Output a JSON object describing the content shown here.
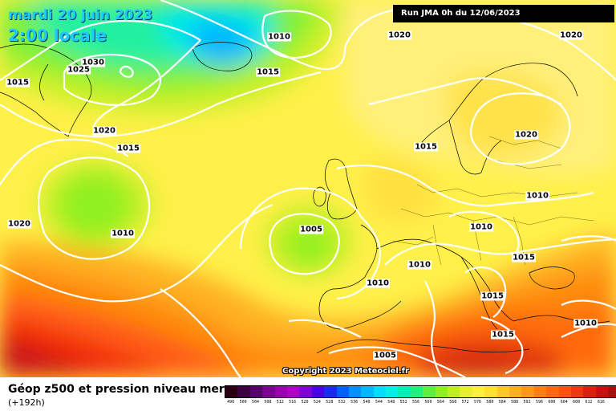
{
  "header": {
    "date_line1": "mardi 20 juin 2023",
    "date_line2": "2:00 locale",
    "run_info": "Run JMA 0h du 12/06/2023"
  },
  "copyright": "Copyright 2023 Meteociel.fr",
  "footer": {
    "title": "Géop z500 et pression niveau mer",
    "subtitle": "(+192h)"
  },
  "isobar_labels": [
    {
      "text": "1010",
      "id": "iso-1010-iceland"
    },
    {
      "text": "1030",
      "id": "iso-1030-greenland"
    },
    {
      "text": "1025",
      "id": "iso-1025-greenland"
    },
    {
      "text": "1015",
      "id": "iso-1015-west"
    },
    {
      "text": "1015",
      "id": "iso-1015-iceland"
    },
    {
      "text": "1020",
      "id": "iso-1020-greenland-south"
    },
    {
      "text": "1015",
      "id": "iso-1015-atlantic-north"
    },
    {
      "text": "1020",
      "id": "iso-1020-north"
    },
    {
      "text": "1020",
      "id": "iso-1020-northeast"
    },
    {
      "text": "1015",
      "id": "iso-1015-norway"
    },
    {
      "text": "1020",
      "id": "iso-1020-russia"
    },
    {
      "text": "1010",
      "id": "iso-1010-atlantic-low"
    },
    {
      "text": "1020",
      "id": "iso-1020-west-edge"
    },
    {
      "text": "1005",
      "id": "iso-1005-biscay-low"
    },
    {
      "text": "1010",
      "id": "iso-1010-ukraine"
    },
    {
      "text": "1010",
      "id": "iso-1010-central-europe"
    },
    {
      "text": "1010",
      "id": "iso-1010-france"
    },
    {
      "text": "1010",
      "id": "iso-1010-iberia"
    },
    {
      "text": "1015",
      "id": "iso-1015-balkans"
    },
    {
      "text": "1015",
      "id": "iso-1015-italy"
    },
    {
      "text": "1015",
      "id": "iso-1015-greece"
    },
    {
      "text": "1010",
      "id": "iso-1010-turkey"
    },
    {
      "text": "1005",
      "id": "iso-1005-africa"
    }
  ],
  "color_scale": {
    "colors": [
      "#2a0010",
      "#3a0040",
      "#55006a",
      "#7a008f",
      "#9a00b0",
      "#b000c8",
      "#8000d8",
      "#4a00e6",
      "#1a2cf0",
      "#0060ff",
      "#0090ff",
      "#00b8ff",
      "#00dcff",
      "#00f0e8",
      "#00f0b8",
      "#20f080",
      "#5ef040",
      "#90f020",
      "#c0f020",
      "#e6f030",
      "#fff040",
      "#ffe030",
      "#ffc828",
      "#ffb020",
      "#ff9818",
      "#ff8010",
      "#ff6810",
      "#ff5010",
      "#f03810",
      "#dc2010",
      "#c81010",
      "#a81010",
      "#880808",
      "#660000",
      "#400000"
    ],
    "labels": [
      "496",
      "500",
      "504",
      "508",
      "512",
      "516",
      "520",
      "524",
      "528",
      "532",
      "536",
      "540",
      "544",
      "548",
      "552",
      "556",
      "560",
      "564",
      "568",
      "572",
      "576",
      "580",
      "584",
      "588",
      "592",
      "596",
      "600",
      "604",
      "608",
      "612",
      "616",
      "",
      "",
      "",
      ""
    ]
  }
}
